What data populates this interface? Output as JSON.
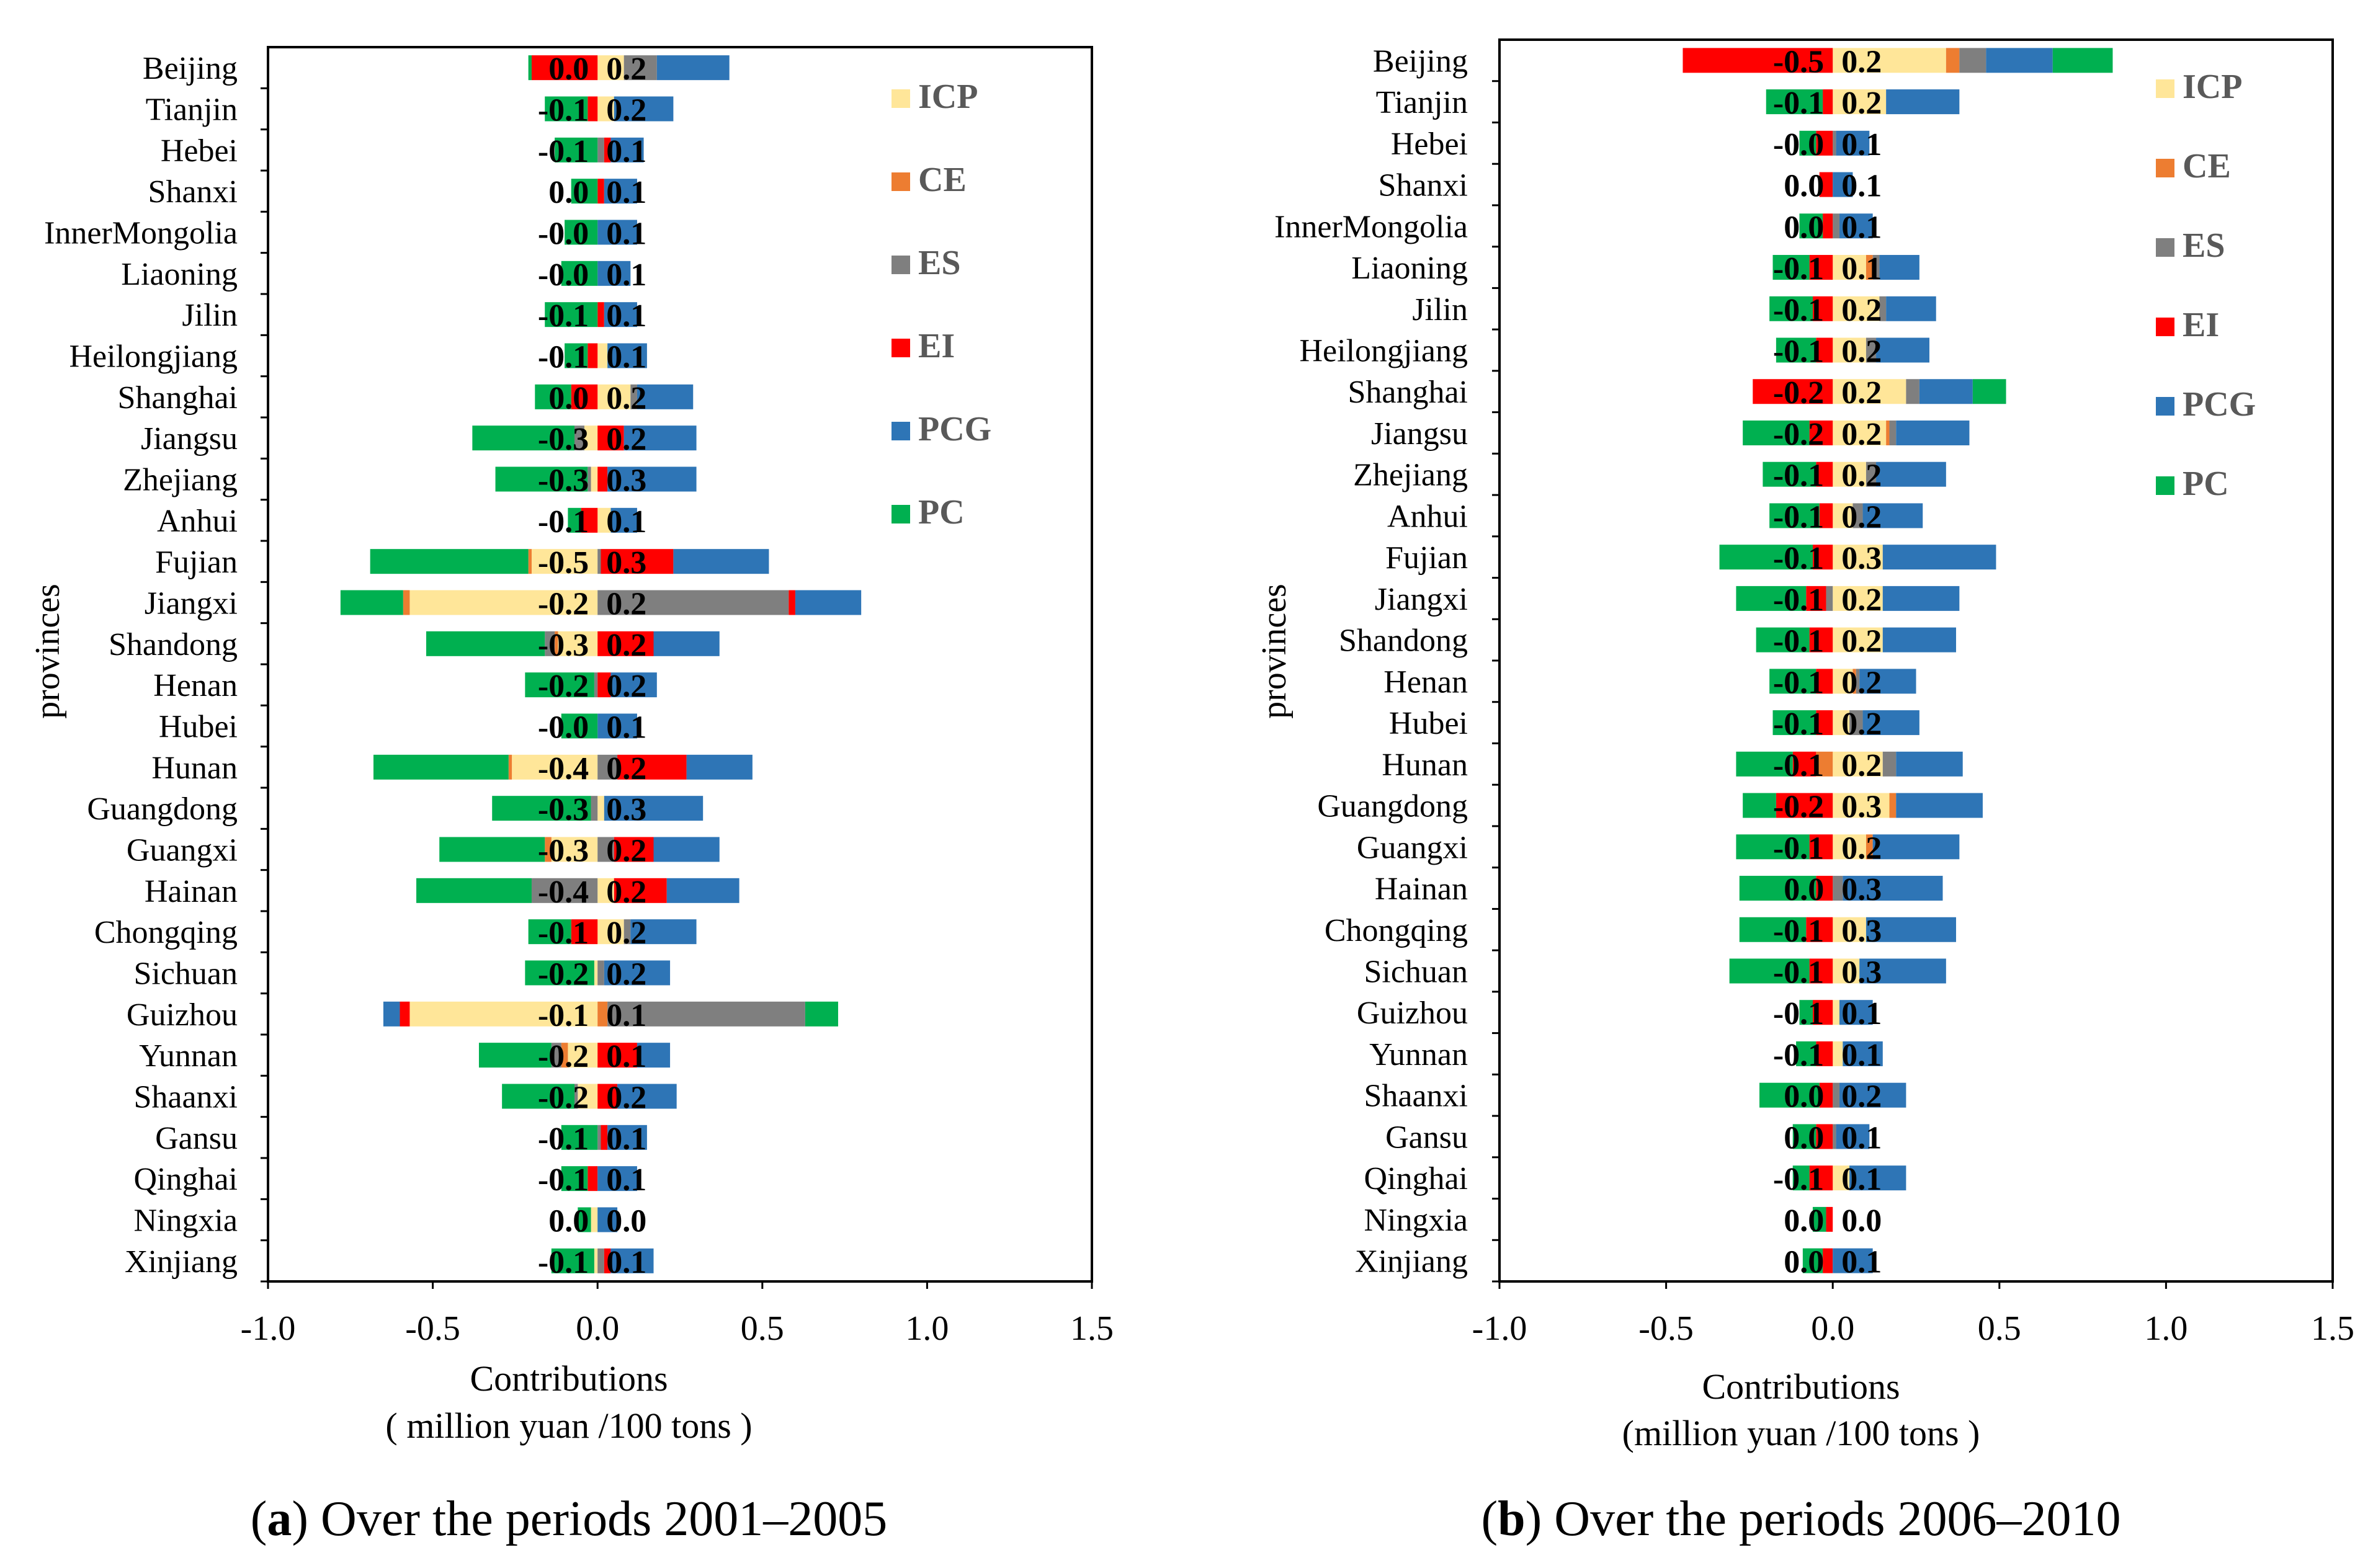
{
  "figure": {
    "caption_a_label": "a",
    "caption_a_text": ") Over the periods 2001–2005",
    "caption_b_label": "b",
    "caption_b_text": ") Over the periods 2006–2010",
    "caption_paren": "("
  },
  "colors": {
    "ICP": "#FFE699",
    "CE": "#ED7D31",
    "ES": "#7F7F7F",
    "EI": "#FF0000",
    "PCG": "#2E75B6",
    "PC": "#00B050"
  },
  "chart_data": [
    {
      "type": "bar",
      "subtype": "stacked-horizontal",
      "title": "Over the periods 2001–2005",
      "ylabel": "provinces",
      "xlabel": "Contributions",
      "xlabel2": "( million yuan /100 tons )",
      "xlim": [
        -1.0,
        1.5
      ],
      "xticks": [
        "-1.0",
        "-0.5",
        "0.0",
        "0.5",
        "1.0",
        "1.5"
      ],
      "legend": [
        "ICP",
        "CE",
        "ES",
        "EI",
        "PCG",
        "PC"
      ],
      "legend_position": "top-right",
      "categories": [
        "Beijing",
        "Tianjin",
        "Hebei",
        "Shanxi",
        "InnerMongolia",
        "Liaoning",
        "Jilin",
        "Heilongjiang",
        "Shanghai",
        "Jiangsu",
        "Zhejiang",
        "Anhui",
        "Fujian",
        "Jiangxi",
        "Shandong",
        "Henan",
        "Hubei",
        "Hunan",
        "Guangdong",
        "Guangxi",
        "Hainan",
        "Chongqing",
        "Sichuan",
        "Guizhou",
        "Yunnan",
        "Shaanxi",
        "Gansu",
        "Qinghai",
        "Ningxia",
        "Xinjiang"
      ],
      "series": [
        {
          "name": "ICP",
          "values": [
            0.08,
            0.05,
            0.0,
            0.0,
            0.0,
            0.0,
            0.0,
            0.03,
            0.1,
            -0.04,
            -0.02,
            0.04,
            -0.2,
            -0.57,
            -0.12,
            0.0,
            0.0,
            -0.26,
            0.02,
            -0.14,
            0.05,
            0.08,
            -0.01,
            -0.57,
            -0.09,
            -0.06,
            0.0,
            0.0,
            -0.02,
            -0.01
          ]
        },
        {
          "name": "CE",
          "values": [
            0.0,
            0.0,
            0.0,
            0.0,
            0.0,
            0.0,
            0.0,
            0.0,
            0.0,
            0.0,
            0.0,
            0.0,
            -0.01,
            -0.02,
            -0.01,
            0.0,
            0.0,
            -0.01,
            0.0,
            -0.02,
            0.0,
            0.0,
            0.0,
            0.03,
            -0.02,
            0.0,
            0.0,
            0.0,
            0.0,
            0.0
          ]
        },
        {
          "name": "ES",
          "values": [
            0.1,
            0.0,
            0.02,
            0.0,
            0.0,
            0.0,
            0.0,
            0.0,
            0.02,
            -0.03,
            -0.01,
            0.0,
            0.01,
            0.58,
            -0.03,
            -0.01,
            0.0,
            0.06,
            -0.02,
            0.05,
            -0.2,
            0.02,
            0.02,
            0.6,
            -0.03,
            -0.01,
            0.01,
            0.0,
            0.0,
            0.02
          ]
        },
        {
          "name": "EI",
          "values": [
            -0.2,
            -0.03,
            0.02,
            0.02,
            0.0,
            0.0,
            0.02,
            -0.03,
            -0.08,
            0.08,
            0.03,
            -0.05,
            0.22,
            0.02,
            0.17,
            0.04,
            0.0,
            0.21,
            0.0,
            0.12,
            0.16,
            -0.08,
            0.0,
            -0.03,
            0.12,
            0.06,
            0.02,
            -0.03,
            0.0,
            0.02
          ]
        },
        {
          "name": "PCG",
          "values": [
            0.22,
            0.18,
            0.1,
            0.1,
            0.12,
            0.1,
            0.1,
            0.12,
            0.17,
            0.22,
            0.27,
            0.08,
            0.29,
            0.2,
            0.2,
            0.14,
            0.12,
            0.2,
            0.3,
            0.2,
            0.22,
            0.2,
            0.2,
            -0.05,
            0.1,
            0.18,
            0.12,
            0.12,
            0.06,
            0.13
          ]
        },
        {
          "name": "PC",
          "values": [
            -0.01,
            -0.13,
            -0.13,
            -0.08,
            -0.1,
            -0.11,
            -0.16,
            -0.07,
            -0.11,
            -0.31,
            -0.28,
            -0.04,
            -0.48,
            -0.19,
            -0.36,
            -0.21,
            -0.11,
            -0.41,
            -0.3,
            -0.32,
            -0.35,
            -0.13,
            -0.21,
            0.1,
            -0.22,
            -0.22,
            -0.11,
            -0.08,
            -0.04,
            -0.13
          ]
        }
      ],
      "bar_labels": {
        "left": [
          "0.0",
          "-0.1",
          "-0.1",
          "0.0",
          "-0.0",
          "-0.0",
          "-0.1",
          "-0.1",
          "0.0",
          "-0.3",
          "-0.3",
          "-0.1",
          "-0.5",
          "-0.2",
          "-0.3",
          "-0.2",
          "-0.0",
          "-0.4",
          "-0.3",
          "-0.3",
          "-0.4",
          "-0.1",
          "-0.2",
          "-0.1",
          "-0.2",
          "-0.2",
          "-0.1",
          "-0.1",
          "0.0",
          "-0.1"
        ],
        "right": [
          "0.2",
          "0.2",
          "0.1",
          "0.1",
          "0.1",
          "0.1",
          "0.1",
          "0.1",
          "0.2",
          "0.2",
          "0.3",
          "0.1",
          "0.3",
          "0.2",
          "0.2",
          "0.2",
          "0.1",
          "0.2",
          "0.3",
          "0.2",
          "0.2",
          "0.2",
          "0.2",
          "0.1",
          "0.1",
          "0.2",
          "0.1",
          "0.1",
          "0.0",
          "0.1"
        ]
      }
    },
    {
      "type": "bar",
      "subtype": "stacked-horizontal",
      "title": "Over the periods 2006–2010",
      "ylabel": "provinces",
      "xlabel": "Contributions",
      "xlabel2": "(million yuan /100 tons )",
      "xlim": [
        -1.0,
        1.5
      ],
      "xticks": [
        "-1.0",
        "-0.5",
        "0.0",
        "0.5",
        "1.0",
        "1.5"
      ],
      "legend": [
        "ICP",
        "CE",
        "ES",
        "EI",
        "PCG",
        "PC"
      ],
      "legend_position": "top-right",
      "categories": [
        "Beijing",
        "Tianjin",
        "Hebei",
        "Shanxi",
        "InnerMongolia",
        "Liaoning",
        "Jilin",
        "Heilongjiang",
        "Shanghai",
        "Jiangsu",
        "Zhejiang",
        "Anhui",
        "Fujian",
        "Jiangxi",
        "Shandong",
        "Henan",
        "Hubei",
        "Hunan",
        "Guangdong",
        "Guangxi",
        "Hainan",
        "Chongqing",
        "Sichuan",
        "Guizhou",
        "Yunnan",
        "Shaanxi",
        "Gansu",
        "Qinghai",
        "Ningxia",
        "Xinjiang"
      ],
      "series": [
        {
          "name": "ICP",
          "values": [
            0.34,
            0.16,
            0.0,
            0.0,
            0.0,
            0.1,
            0.14,
            0.1,
            0.22,
            0.16,
            0.1,
            0.06,
            0.15,
            0.15,
            0.15,
            0.06,
            0.05,
            0.15,
            0.17,
            0.1,
            0.0,
            0.1,
            0.08,
            0.02,
            0.03,
            0.0,
            0.0,
            0.05,
            0.0,
            0.0
          ]
        },
        {
          "name": "CE",
          "values": [
            0.04,
            0.0,
            0.0,
            0.0,
            0.0,
            0.02,
            0.0,
            0.0,
            0.0,
            0.01,
            0.0,
            0.0,
            0.0,
            0.0,
            0.0,
            0.01,
            0.0,
            -0.05,
            0.02,
            0.02,
            0.0,
            0.0,
            0.0,
            0.0,
            0.0,
            0.0,
            0.0,
            0.0,
            0.0,
            0.0
          ]
        },
        {
          "name": "ES",
          "values": [
            0.08,
            0.0,
            0.01,
            0.0,
            0.02,
            0.02,
            0.02,
            0.03,
            0.04,
            0.02,
            0.03,
            0.03,
            0.0,
            -0.02,
            0.0,
            0.01,
            0.04,
            0.04,
            0.0,
            0.0,
            0.03,
            0.0,
            0.0,
            0.0,
            0.0,
            0.02,
            0.01,
            0.0,
            0.0,
            0.0
          ]
        },
        {
          "name": "EI",
          "values": [
            -0.45,
            -0.03,
            -0.05,
            -0.04,
            -0.03,
            -0.07,
            -0.06,
            -0.05,
            -0.24,
            -0.07,
            -0.05,
            -0.04,
            -0.06,
            -0.06,
            -0.07,
            -0.05,
            -0.05,
            -0.07,
            -0.17,
            -0.07,
            -0.05,
            -0.08,
            -0.07,
            -0.06,
            -0.05,
            -0.04,
            -0.05,
            -0.07,
            -0.02,
            -0.03
          ]
        },
        {
          "name": "PCG",
          "values": [
            0.2,
            0.22,
            0.1,
            0.06,
            0.1,
            0.12,
            0.15,
            0.16,
            0.16,
            0.22,
            0.21,
            0.18,
            0.34,
            0.23,
            0.22,
            0.17,
            0.17,
            0.2,
            0.26,
            0.26,
            0.3,
            0.27,
            0.26,
            0.1,
            0.12,
            0.2,
            0.1,
            0.17,
            0.0,
            0.12
          ]
        },
        {
          "name": "PC",
          "values": [
            0.18,
            -0.17,
            -0.05,
            0.0,
            -0.07,
            -0.11,
            -0.13,
            -0.12,
            0.1,
            -0.2,
            -0.16,
            -0.15,
            -0.28,
            -0.21,
            -0.16,
            -0.14,
            -0.13,
            -0.17,
            -0.1,
            -0.22,
            -0.23,
            -0.2,
            -0.24,
            -0.04,
            -0.06,
            -0.18,
            -0.07,
            -0.05,
            -0.04,
            -0.06
          ]
        }
      ],
      "bar_labels": {
        "left": [
          "-0.5",
          "-0.1",
          "-0.0",
          "0.0",
          "0.0",
          "-0.1",
          "-0.1",
          "-0.1",
          "-0.2",
          "-0.2",
          "-0.1",
          "-0.1",
          "-0.1",
          "-0.1",
          "-0.1",
          "-0.1",
          "-0.1",
          "-0.1",
          "-0.2",
          "-0.1",
          "0.0",
          "-0.1",
          "-0.1",
          "-0.1",
          "-0.1",
          "0.0",
          "0.0",
          "-0.1",
          "0.0",
          "0.0"
        ],
        "right": [
          "0.2",
          "0.2",
          "0.1",
          "0.1",
          "0.1",
          "0.1",
          "0.2",
          "0.2",
          "0.2",
          "0.2",
          "0.2",
          "0.2",
          "0.3",
          "0.2",
          "0.2",
          "0.2",
          "0.2",
          "0.2",
          "0.3",
          "0.2",
          "0.3",
          "0.3",
          "0.3",
          "0.1",
          "0.1",
          "0.2",
          "0.1",
          "0.1",
          "0.0",
          "0.1"
        ]
      }
    }
  ]
}
